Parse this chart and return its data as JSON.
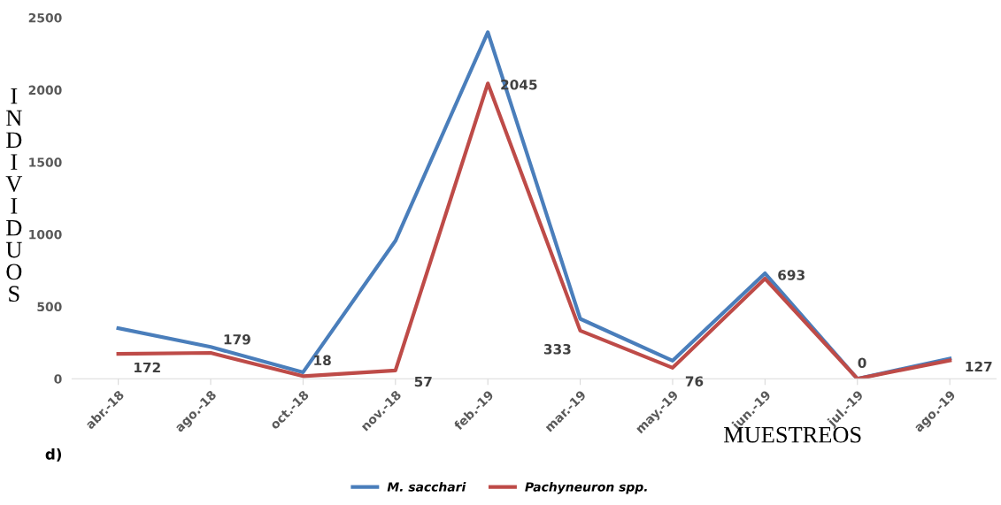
{
  "chart_data": {
    "type": "line",
    "categories": [
      "abr.-18",
      "ago.-18",
      "oct.-18",
      "nov.-18",
      "feb.-19",
      "mar.-19",
      "may.-19",
      "jun.-19",
      "jul.-19",
      "ago.-19"
    ],
    "series": [
      {
        "name": "M. sacchari",
        "color": "#4a7ebb",
        "values": [
          350,
          220,
          45,
          955,
          2400,
          415,
          125,
          730,
          0,
          140
        ]
      },
      {
        "name": "Pachyneuron spp.",
        "color": "#be4b48",
        "values": [
          172,
          179,
          18,
          57,
          2045,
          333,
          76,
          693,
          0,
          127
        ],
        "value_labels": [
          "172",
          "179",
          "18",
          "57",
          "2045",
          "333",
          "76",
          "693",
          "0",
          "127"
        ]
      }
    ],
    "ylim": [
      0,
      2500
    ],
    "yticks": [
      0,
      500,
      1000,
      1500,
      2000,
      2500
    ],
    "ylabel": "INDIVIDUOS",
    "xlabel": "MUESTREOS",
    "annotations": [
      "d)"
    ],
    "legend": "bottom",
    "grid": false,
    "marker": "none",
    "line_style": "solid"
  }
}
